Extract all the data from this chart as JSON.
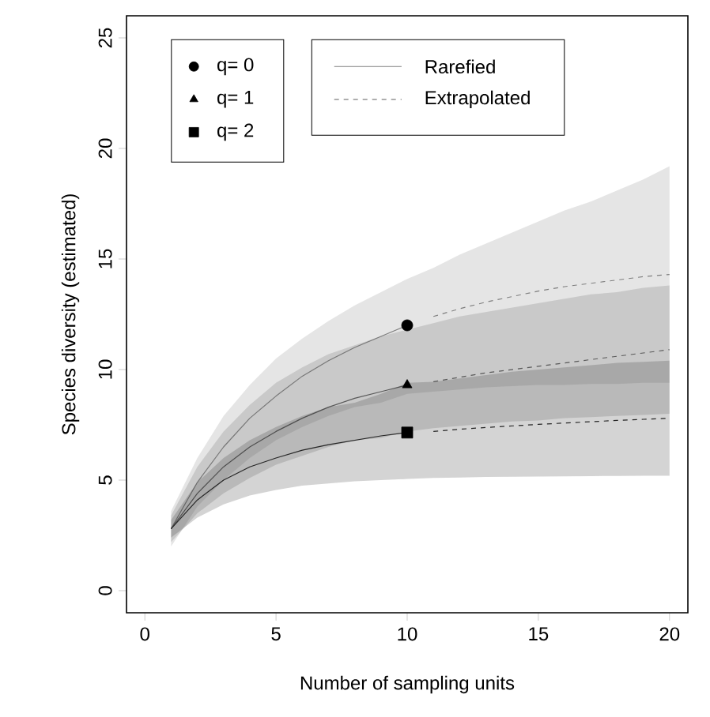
{
  "chart_data": {
    "type": "line",
    "xlabel": "Number of sampling units",
    "ylabel": "Species diversity (estimated)",
    "xlim": [
      -0.7,
      20.7
    ],
    "ylim": [
      -1,
      26
    ],
    "xticks": [
      0,
      5,
      10,
      15,
      20
    ],
    "yticks": [
      0,
      5,
      10,
      15,
      20,
      25
    ],
    "legend": "top left",
    "series": [
      {
        "name": "q= 0",
        "type": "scatter",
        "marker": "circle",
        "color": "#000000",
        "x": [
          10
        ],
        "values": [
          12.0
        ]
      },
      {
        "name": "q= 1",
        "type": "scatter",
        "marker": "triangle",
        "color": "#000000",
        "x": [
          10
        ],
        "values": [
          9.3
        ]
      },
      {
        "name": "q= 2",
        "type": "scatter",
        "marker": "square",
        "color": "#000000",
        "x": [
          10
        ],
        "values": [
          7.15
        ]
      },
      {
        "name": "Rarefied",
        "type": "line",
        "line_style": "solid",
        "color": "#7f7f7f",
        "x": [
          1,
          2,
          3,
          4,
          5,
          6,
          7,
          8,
          9,
          10
        ],
        "values": [
          2.8,
          4.9,
          6.5,
          7.8,
          8.8,
          9.7,
          10.4,
          11.0,
          11.5,
          12.0
        ],
        "lower": [
          2.0,
          3.8,
          5.0,
          6.0,
          6.8,
          7.4,
          7.9,
          8.3,
          8.5,
          8.9
        ],
        "upper": [
          3.6,
          6.0,
          7.9,
          9.3,
          10.5,
          11.4,
          12.2,
          12.9,
          13.5,
          14.1
        ]
      },
      {
        "name": "Extrapolated",
        "type": "line",
        "line_style": "dashed",
        "color": "#7f7f7f",
        "x": [
          10,
          11,
          12,
          13,
          14,
          15,
          16,
          17,
          18,
          19,
          20
        ],
        "values": [
          null,
          12.4,
          12.75,
          13.05,
          13.3,
          13.55,
          13.75,
          13.9,
          14.05,
          14.2,
          14.3
        ],
        "lower": [
          8.9,
          9.0,
          9.1,
          9.2,
          9.25,
          9.3,
          9.3,
          9.35,
          9.35,
          9.4,
          9.4
        ],
        "upper": [
          14.1,
          14.6,
          15.2,
          15.7,
          16.2,
          16.7,
          17.2,
          17.6,
          18.1,
          18.6,
          19.2
        ]
      },
      {
        "type": "line",
        "line_style": "solid",
        "color": "#595959",
        "x": [
          1,
          2,
          3,
          4,
          5,
          6,
          7,
          8,
          9,
          10
        ],
        "values": [
          2.8,
          4.4,
          5.6,
          6.5,
          7.2,
          7.8,
          8.3,
          8.7,
          9.0,
          9.3
        ],
        "lower": [
          2.2,
          3.5,
          4.4,
          5.1,
          5.7,
          6.1,
          6.5,
          6.8,
          6.9,
          7.2
        ],
        "upper": [
          3.4,
          5.6,
          7.2,
          8.4,
          9.4,
          10.1,
          10.7,
          11.1,
          11.5,
          11.8
        ]
      },
      {
        "type": "line",
        "line_style": "dashed",
        "color": "#595959",
        "x": [
          10,
          11,
          12,
          13,
          14,
          15,
          16,
          17,
          18,
          19,
          20
        ],
        "values": [
          null,
          9.45,
          9.65,
          9.85,
          10.0,
          10.15,
          10.3,
          10.45,
          10.6,
          10.75,
          10.9
        ],
        "lower": [
          7.2,
          7.35,
          7.45,
          7.55,
          7.65,
          7.7,
          7.8,
          7.85,
          7.9,
          7.95,
          8.0
        ],
        "upper": [
          11.8,
          12.1,
          12.4,
          12.6,
          12.8,
          13.0,
          13.2,
          13.4,
          13.5,
          13.7,
          13.8
        ]
      },
      {
        "type": "line",
        "line_style": "solid",
        "color": "#262626",
        "x": [
          1,
          2,
          3,
          4,
          5,
          6,
          7,
          8,
          9,
          10
        ],
        "values": [
          2.8,
          4.1,
          5.0,
          5.6,
          6.0,
          6.35,
          6.6,
          6.8,
          7.0,
          7.15
        ],
        "lower": [
          2.4,
          3.3,
          3.9,
          4.3,
          4.55,
          4.75,
          4.85,
          4.95,
          5.0,
          5.05
        ],
        "upper": [
          3.2,
          4.9,
          6.0,
          6.8,
          7.4,
          7.9,
          8.3,
          8.5,
          8.9,
          9.4
        ]
      },
      {
        "type": "line",
        "line_style": "dashed",
        "color": "#262626",
        "x": [
          10,
          11,
          12,
          13,
          14,
          15,
          16,
          17,
          18,
          19,
          20
        ],
        "values": [
          null,
          7.2,
          7.3,
          7.38,
          7.45,
          7.52,
          7.58,
          7.64,
          7.7,
          7.75,
          7.8
        ],
        "lower": [
          5.05,
          5.1,
          5.12,
          5.14,
          5.15,
          5.16,
          5.17,
          5.18,
          5.19,
          5.2,
          5.2
        ],
        "upper": [
          9.4,
          9.45,
          9.6,
          9.75,
          9.9,
          10.0,
          10.1,
          10.2,
          10.3,
          10.35,
          10.4
        ]
      }
    ]
  }
}
